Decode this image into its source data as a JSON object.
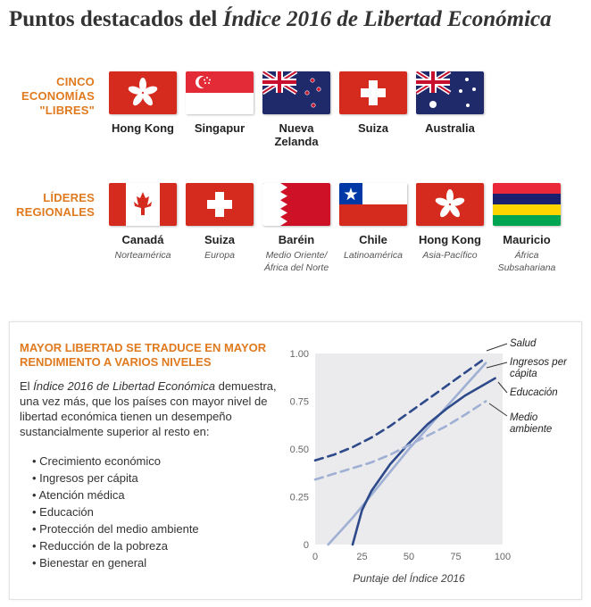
{
  "header": {
    "title_prefix": "Puntos destacados del ",
    "title_italic": "Índice 2016 de Libertad Económica"
  },
  "free_economies": {
    "label_lines": [
      "CINCO",
      "ECONOMÍAS",
      "\"LIBRES\""
    ],
    "countries": [
      {
        "name": "Hong Kong",
        "flag": "hong-kong-flag"
      },
      {
        "name": "Singapur",
        "flag": "singapore-flag"
      },
      {
        "name": "Nueva Zelanda",
        "flag": "new-zealand-flag"
      },
      {
        "name": "Suiza",
        "flag": "switzerland-flag"
      },
      {
        "name": "Australia",
        "flag": "australia-flag"
      }
    ]
  },
  "regional_leaders": {
    "label_lines": [
      "LÍDERES",
      "REGIONALES"
    ],
    "countries": [
      {
        "name": "Canadá",
        "region": "Norteamérica",
        "flag": "canada-flag"
      },
      {
        "name": "Suiza",
        "region": "Europa",
        "flag": "switzerland-flag"
      },
      {
        "name": "Baréin",
        "region": "Medio Oriente/ África del Norte",
        "flag": "bahrain-flag"
      },
      {
        "name": "Chile",
        "region": "Latinoamérica",
        "flag": "chile-flag"
      },
      {
        "name": "Hong Kong",
        "region": "Asia-Pacífico",
        "flag": "hong-kong-flag"
      },
      {
        "name": "Mauricio",
        "region": "África Subsahariana",
        "flag": "mauritius-flag"
      }
    ]
  },
  "panel": {
    "title": "MAYOR LIBERTAD SE TRADUCE EN MAYOR RENDIMIENTO A VARIOS NIVELES",
    "body_prefix": "El ",
    "body_italic": "Índice 2016 de Libertad Económica",
    "body_suffix": " demuestra, una vez más, que los países con mayor nivel de libertad económica tienen un desempeño sustancialmente superior al resto en:",
    "bullets": [
      "Crecimiento económico",
      "Ingresos per cápita",
      "Atención médica",
      "Educación",
      "Protección del medio ambiente",
      "Reducción de la pobreza",
      "Bienestar en general"
    ]
  },
  "colors": {
    "accent": "#e07a1f",
    "dark_blue": "#2e4a8a",
    "light_blue": "#9fb0d4",
    "plot_bg": "#ebebed"
  },
  "chart_data": {
    "type": "line",
    "title": "",
    "xlabel": "Puntaje del Índice 2016",
    "ylabel": "",
    "xlim": [
      0,
      100
    ],
    "ylim": [
      0,
      1
    ],
    "x_ticks": [
      "0",
      "25",
      "50",
      "75",
      "100"
    ],
    "y_ticks": [
      "0",
      "0.25",
      "0.50",
      "0.75",
      "1.00"
    ],
    "grid": false,
    "legend": "direct labels at right",
    "series": [
      {
        "name": "Salud",
        "color": "#2e4a8a",
        "dash": true,
        "x": [
          0,
          10,
          20,
          30,
          40,
          50,
          60,
          70,
          80,
          90
        ],
        "y": [
          0.44,
          0.47,
          0.51,
          0.56,
          0.62,
          0.69,
          0.76,
          0.83,
          0.9,
          0.97
        ]
      },
      {
        "name": "Ingresos per cápita",
        "color": "#9fb0d4",
        "dash": false,
        "x": [
          7,
          20,
          30,
          40,
          50,
          60,
          70,
          80,
          91
        ],
        "y": [
          0.0,
          0.14,
          0.26,
          0.38,
          0.5,
          0.61,
          0.72,
          0.83,
          0.95
        ]
      },
      {
        "name": "Educación",
        "color": "#2e4a8a",
        "dash": false,
        "x": [
          20,
          25,
          30,
          40,
          50,
          60,
          70,
          80,
          96
        ],
        "y": [
          0.0,
          0.18,
          0.28,
          0.42,
          0.53,
          0.63,
          0.71,
          0.78,
          0.87
        ]
      },
      {
        "name": "Medio ambiente",
        "color": "#9fb0d4",
        "dash": true,
        "x": [
          0,
          10,
          20,
          30,
          40,
          50,
          60,
          70,
          80,
          91
        ],
        "y": [
          0.34,
          0.37,
          0.4,
          0.43,
          0.47,
          0.52,
          0.57,
          0.62,
          0.68,
          0.75
        ]
      }
    ],
    "labels": [
      {
        "lines": [
          "Salud"
        ]
      },
      {
        "lines": [
          "Ingresos per",
          "cápita"
        ]
      },
      {
        "lines": [
          "Educación"
        ]
      },
      {
        "lines": [
          "Medio",
          "ambiente"
        ]
      }
    ]
  }
}
